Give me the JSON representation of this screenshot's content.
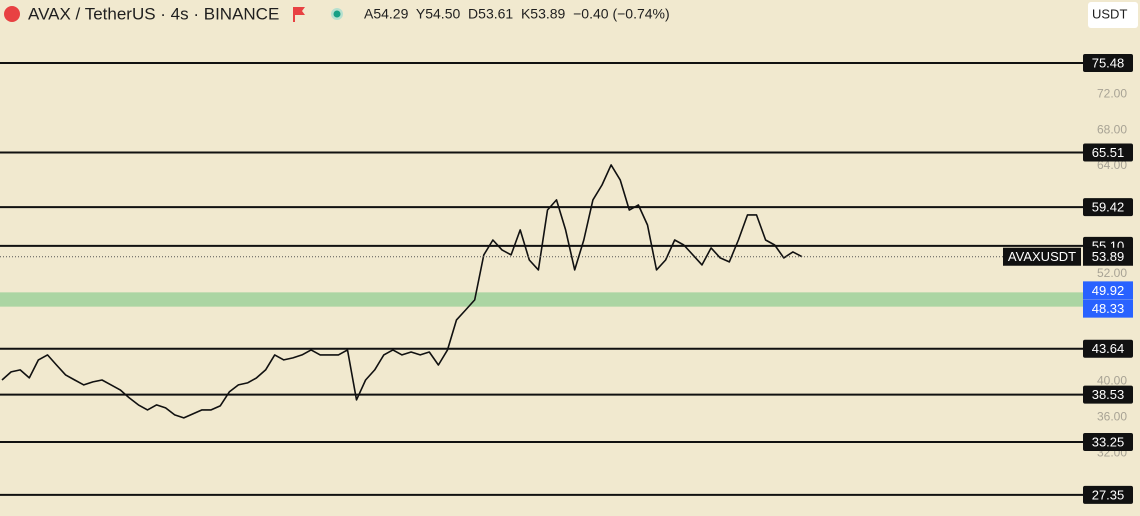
{
  "chart_data": {
    "type": "line",
    "title": "AVAX / TetherUS · 4s · BINANCE",
    "ohlc": "A54.29  Y54.50  D53.61  K53.89  −0.40 (−0.74%)",
    "currency": "USDT",
    "symbol": "AVAXUSDT",
    "color": "#111111",
    "ylim": [
      25,
      82.5
    ],
    "yticks": [
      {
        "value": 72,
        "label": "72.00"
      },
      {
        "value": 68,
        "label": "68.00"
      },
      {
        "value": 64,
        "label": "64.00"
      },
      {
        "value": 52,
        "label": "52.00"
      },
      {
        "value": 40,
        "label": "40.00"
      },
      {
        "value": 36,
        "label": "36.00"
      },
      {
        "value": 32,
        "label": "32.00"
      }
    ],
    "levels": [
      75.48,
      65.51,
      59.42,
      {
        "value": 55.1,
        "label": "55.10"
      },
      43.64,
      38.53,
      33.25,
      27.35
    ],
    "zone": [
      49.92,
      48.33
    ],
    "last_price": 53.89,
    "values": [
      40.16,
      41.06,
      41.28,
      40.39,
      42.39,
      42.95,
      41.83,
      40.72,
      40.16,
      39.61,
      39.94,
      40.16,
      39.61,
      39.05,
      38.16,
      37.38,
      36.82,
      37.38,
      37.05,
      36.27,
      35.93,
      36.38,
      36.82,
      36.82,
      37.27,
      38.83,
      39.61,
      39.83,
      40.39,
      41.28,
      42.95,
      42.39,
      42.62,
      42.95,
      43.51,
      42.95,
      42.95,
      42.95,
      43.51,
      37.94,
      40.16,
      41.28,
      42.95,
      43.51,
      42.95,
      43.28,
      42.95,
      43.28,
      41.83,
      43.51,
      46.85,
      47.96,
      49.08,
      54.09,
      55.76,
      54.65,
      54.09,
      56.88,
      53.53,
      52.42,
      59.1,
      60.22,
      56.88,
      52.42,
      55.76,
      60.22,
      61.89,
      64.12,
      62.45,
      59.1,
      59.66,
      57.43,
      52.42,
      53.53,
      55.76,
      55.2,
      54.09,
      52.98,
      54.87,
      53.76,
      53.31,
      55.76,
      58.55,
      58.55,
      55.76,
      55.2,
      53.76,
      54.43,
      53.89
    ]
  }
}
